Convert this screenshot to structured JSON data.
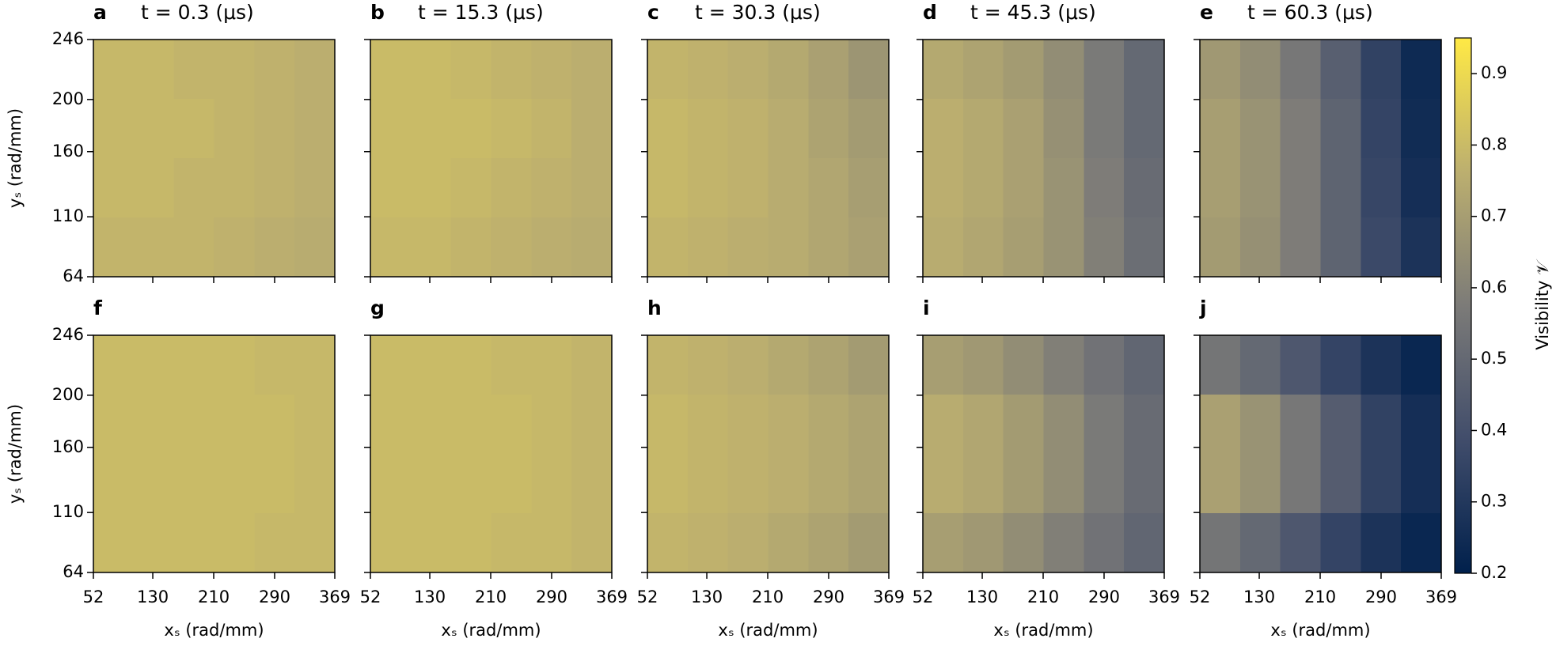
{
  "chart_data": [
    {
      "type": "heatmap",
      "panel": "a",
      "title": "t = 0.3 (μs)",
      "xlim": [
        52,
        369
      ],
      "ylim": [
        64,
        246
      ],
      "xticks": [
        52,
        130,
        210,
        290,
        369
      ],
      "yticks": [
        64,
        110,
        160,
        200,
        246
      ],
      "ylabel": "yₛ (rad/mm)",
      "values": [
        [
          0.79,
          0.79,
          0.78,
          0.78,
          0.77,
          0.76
        ],
        [
          0.79,
          0.79,
          0.79,
          0.78,
          0.77,
          0.76
        ],
        [
          0.79,
          0.79,
          0.78,
          0.78,
          0.77,
          0.76
        ],
        [
          0.78,
          0.78,
          0.78,
          0.77,
          0.76,
          0.75
        ]
      ]
    },
    {
      "type": "heatmap",
      "panel": "b",
      "title": "t = 15.3 (μs)",
      "xlim": [
        52,
        369
      ],
      "ylim": [
        64,
        246
      ],
      "xticks": [
        52,
        130,
        210,
        290,
        369
      ],
      "yticks": [
        64,
        110,
        160,
        200,
        246
      ],
      "values": [
        [
          0.8,
          0.8,
          0.79,
          0.78,
          0.77,
          0.76
        ],
        [
          0.8,
          0.8,
          0.8,
          0.79,
          0.78,
          0.76
        ],
        [
          0.8,
          0.8,
          0.79,
          0.78,
          0.77,
          0.76
        ],
        [
          0.79,
          0.79,
          0.78,
          0.77,
          0.76,
          0.75
        ]
      ]
    },
    {
      "type": "heatmap",
      "panel": "c",
      "title": "t = 30.3 (μs)",
      "xlim": [
        52,
        369
      ],
      "ylim": [
        64,
        246
      ],
      "xticks": [
        52,
        130,
        210,
        290,
        369
      ],
      "yticks": [
        64,
        110,
        160,
        200,
        246
      ],
      "values": [
        [
          0.78,
          0.77,
          0.76,
          0.74,
          0.71,
          0.67
        ],
        [
          0.79,
          0.78,
          0.77,
          0.75,
          0.72,
          0.69
        ],
        [
          0.79,
          0.78,
          0.77,
          0.75,
          0.73,
          0.7
        ],
        [
          0.78,
          0.77,
          0.76,
          0.75,
          0.73,
          0.71
        ]
      ]
    },
    {
      "type": "heatmap",
      "panel": "d",
      "title": "t = 45.3 (μs)",
      "xlim": [
        52,
        369
      ],
      "ylim": [
        64,
        246
      ],
      "xticks": [
        52,
        130,
        210,
        290,
        369
      ],
      "yticks": [
        64,
        110,
        160,
        200,
        246
      ],
      "values": [
        [
          0.74,
          0.72,
          0.69,
          0.64,
          0.57,
          0.5
        ],
        [
          0.76,
          0.74,
          0.71,
          0.65,
          0.57,
          0.5
        ],
        [
          0.76,
          0.74,
          0.71,
          0.66,
          0.58,
          0.51
        ],
        [
          0.75,
          0.73,
          0.7,
          0.66,
          0.59,
          0.52
        ]
      ]
    },
    {
      "type": "heatmap",
      "panel": "e",
      "title": "t = 60.3 (μs)",
      "xlim": [
        52,
        369
      ],
      "ylim": [
        64,
        246
      ],
      "xticks": [
        52,
        130,
        210,
        290,
        369
      ],
      "yticks": [
        64,
        110,
        160,
        200,
        246
      ],
      "values": [
        [
          0.68,
          0.64,
          0.56,
          0.46,
          0.34,
          0.24
        ],
        [
          0.7,
          0.66,
          0.58,
          0.48,
          0.35,
          0.25
        ],
        [
          0.7,
          0.66,
          0.58,
          0.48,
          0.36,
          0.26
        ],
        [
          0.69,
          0.65,
          0.58,
          0.48,
          0.37,
          0.28
        ]
      ]
    },
    {
      "type": "heatmap",
      "panel": "f",
      "xlim": [
        52,
        369
      ],
      "ylim": [
        64,
        246
      ],
      "xticks": [
        52,
        130,
        210,
        290,
        369
      ],
      "yticks": [
        64,
        110,
        160,
        200,
        246
      ],
      "xlabel": "xₛ (rad/mm)",
      "ylabel": "yₛ (rad/mm)",
      "values": [
        [
          0.8,
          0.8,
          0.8,
          0.8,
          0.79,
          0.79
        ],
        [
          0.8,
          0.8,
          0.8,
          0.8,
          0.8,
          0.79
        ],
        [
          0.8,
          0.8,
          0.8,
          0.8,
          0.8,
          0.79
        ],
        [
          0.8,
          0.8,
          0.8,
          0.8,
          0.79,
          0.79
        ]
      ]
    },
    {
      "type": "heatmap",
      "panel": "g",
      "xlim": [
        52,
        369
      ],
      "ylim": [
        64,
        246
      ],
      "xticks": [
        52,
        130,
        210,
        290,
        369
      ],
      "yticks": [
        64,
        110,
        160,
        200,
        246
      ],
      "xlabel": "xₛ (rad/mm)",
      "values": [
        [
          0.8,
          0.8,
          0.8,
          0.79,
          0.79,
          0.78
        ],
        [
          0.8,
          0.8,
          0.8,
          0.8,
          0.79,
          0.78
        ],
        [
          0.8,
          0.8,
          0.8,
          0.8,
          0.79,
          0.78
        ],
        [
          0.8,
          0.8,
          0.8,
          0.79,
          0.79,
          0.78
        ]
      ]
    },
    {
      "type": "heatmap",
      "panel": "h",
      "xlim": [
        52,
        369
      ],
      "ylim": [
        64,
        246
      ],
      "xticks": [
        52,
        130,
        210,
        290,
        369
      ],
      "yticks": [
        64,
        110,
        160,
        200,
        246
      ],
      "xlabel": "xₛ (rad/mm)",
      "values": [
        [
          0.78,
          0.77,
          0.76,
          0.74,
          0.72,
          0.69
        ],
        [
          0.79,
          0.78,
          0.77,
          0.76,
          0.74,
          0.72
        ],
        [
          0.79,
          0.78,
          0.77,
          0.76,
          0.74,
          0.72
        ],
        [
          0.78,
          0.77,
          0.76,
          0.74,
          0.72,
          0.69
        ]
      ]
    },
    {
      "type": "heatmap",
      "panel": "i",
      "xlim": [
        52,
        369
      ],
      "ylim": [
        64,
        246
      ],
      "xticks": [
        52,
        130,
        210,
        290,
        369
      ],
      "yticks": [
        64,
        110,
        160,
        200,
        246
      ],
      "xlabel": "xₛ (rad/mm)",
      "values": [
        [
          0.7,
          0.68,
          0.64,
          0.59,
          0.54,
          0.49
        ],
        [
          0.75,
          0.73,
          0.69,
          0.64,
          0.57,
          0.51
        ],
        [
          0.75,
          0.73,
          0.69,
          0.64,
          0.57,
          0.51
        ],
        [
          0.7,
          0.68,
          0.64,
          0.59,
          0.54,
          0.49
        ]
      ]
    },
    {
      "type": "heatmap",
      "panel": "j",
      "xlim": [
        52,
        369
      ],
      "ylim": [
        64,
        246
      ],
      "xticks": [
        52,
        130,
        210,
        290,
        369
      ],
      "yticks": [
        64,
        110,
        160,
        200,
        246
      ],
      "xlabel": "xₛ (rad/mm)",
      "values": [
        [
          0.55,
          0.5,
          0.43,
          0.35,
          0.28,
          0.23
        ],
        [
          0.71,
          0.66,
          0.56,
          0.45,
          0.34,
          0.26
        ],
        [
          0.71,
          0.66,
          0.56,
          0.45,
          0.34,
          0.26
        ],
        [
          0.55,
          0.5,
          0.43,
          0.35,
          0.28,
          0.23
        ]
      ]
    },
    {
      "type": "colorbar",
      "label": "Visibility 𝒱",
      "colormap": "cividis",
      "ylim": [
        0.2,
        0.95
      ],
      "yticks": [
        0.2,
        0.3,
        0.4,
        0.5,
        0.6,
        0.7,
        0.8,
        0.9
      ]
    }
  ]
}
